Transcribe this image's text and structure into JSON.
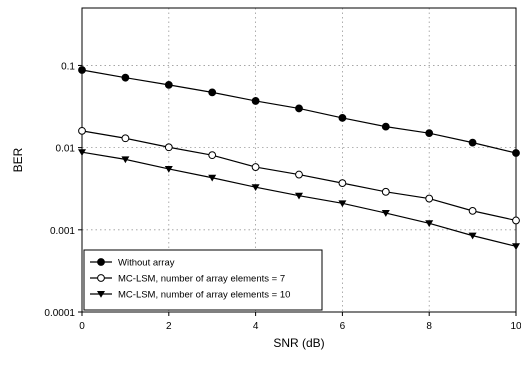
{
  "chart_data": {
    "type": "line",
    "title": "",
    "xlabel": "SNR (dB)",
    "ylabel": "BER",
    "xlim": [
      0,
      10
    ],
    "ylim": [
      0.0001,
      0.5
    ],
    "yscale": "log",
    "grid": "major gridlines, dotted",
    "legend_position": "bottom-left",
    "x_ticks": [
      0,
      2,
      4,
      6,
      8,
      10
    ],
    "x_tick_labels": [
      "0",
      "2",
      "4",
      "6",
      "8",
      "10"
    ],
    "y_ticks": [
      0.0001,
      0.001,
      0.01,
      0.1
    ],
    "y_tick_labels": [
      "0.0001",
      "0.001",
      "0.01",
      "0.1"
    ],
    "x": [
      0,
      1,
      2,
      3,
      4,
      5,
      6,
      7,
      8,
      9,
      10
    ],
    "series": [
      {
        "name": "Without array",
        "marker": "filled-circle",
        "values": [
          0.088,
          0.071,
          0.058,
          0.047,
          0.037,
          0.03,
          0.023,
          0.018,
          0.015,
          0.0115,
          0.0086
        ]
      },
      {
        "name": "MC-LSM, number of array elements = 7",
        "marker": "open-circle",
        "values": [
          0.016,
          0.013,
          0.0101,
          0.0081,
          0.0058,
          0.0047,
          0.0037,
          0.0029,
          0.0024,
          0.0017,
          0.0013
        ]
      },
      {
        "name": "MC-LSM, number of array elements = 10",
        "marker": "filled-triangle-down",
        "values": [
          0.0088,
          0.0072,
          0.0055,
          0.0043,
          0.0033,
          0.0026,
          0.0021,
          0.0016,
          0.0012,
          0.00085,
          0.00063
        ]
      }
    ]
  }
}
